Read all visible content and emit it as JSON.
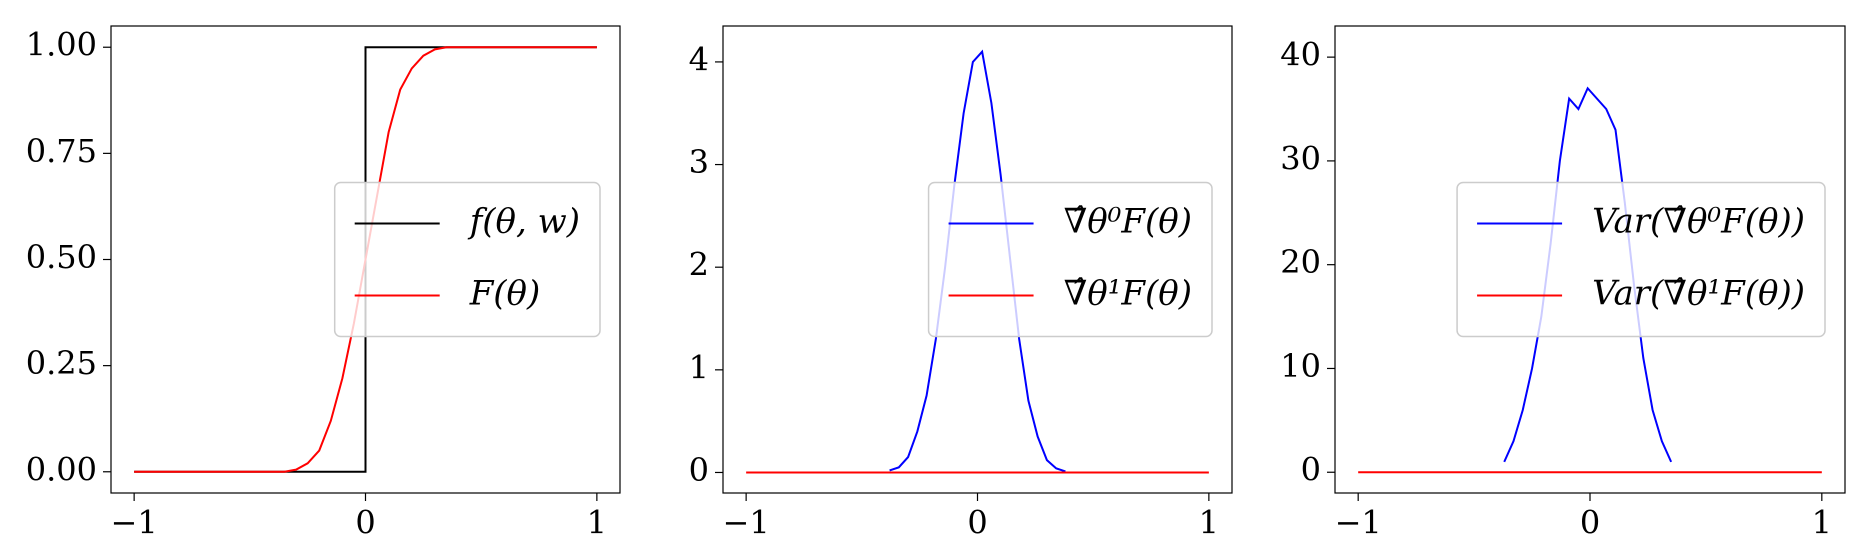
{
  "chart_data": [
    {
      "type": "line",
      "legend": "center right",
      "xlim": [
        -1.1,
        1.1
      ],
      "ylim": [
        -0.05,
        1.05
      ],
      "xticks": [
        {
          "value": -1,
          "label": "−1"
        },
        0,
        1
      ],
      "yticks": [
        {
          "value": 0,
          "label": "0.00"
        },
        {
          "value": 0.25,
          "label": "0.25"
        },
        {
          "value": 0.5,
          "label": "0.50"
        },
        {
          "value": 0.75,
          "label": "0.75"
        },
        {
          "value": 1,
          "label": "1.00"
        }
      ],
      "series": [
        {
          "name": "f(θ, w)",
          "color": "#000000",
          "x": [
            -1,
            0,
            0,
            1
          ],
          "values": [
            0,
            0,
            1,
            1
          ]
        },
        {
          "name": "F(θ)",
          "color": "#ff0000",
          "x": [
            -1,
            -0.35,
            -0.3,
            -0.25,
            -0.2,
            -0.15,
            -0.1,
            -0.05,
            0,
            0.05,
            0.1,
            0.15,
            0.2,
            0.25,
            0.3,
            0.35,
            1
          ],
          "values": [
            0,
            0,
            0.005,
            0.02,
            0.05,
            0.12,
            0.22,
            0.35,
            0.5,
            0.65,
            0.8,
            0.9,
            0.95,
            0.98,
            0.995,
            1,
            1
          ]
        }
      ]
    },
    {
      "type": "line",
      "legend": "center right",
      "xlim": [
        -1.1,
        1.1
      ],
      "ylim": [
        -0.2,
        4.35
      ],
      "xticks": [
        {
          "value": -1,
          "label": "−1"
        },
        0,
        1
      ],
      "yticks": [
        0,
        1,
        2,
        3,
        4
      ],
      "series": [
        {
          "name": "∇̂θ⁰F(θ)",
          "color": "#0000ff",
          "x": [
            -0.38,
            -0.34,
            -0.3,
            -0.26,
            -0.22,
            -0.18,
            -0.14,
            -0.1,
            -0.06,
            -0.02,
            0.02,
            0.06,
            0.1,
            0.14,
            0.18,
            0.22,
            0.26,
            0.3,
            0.34,
            0.38
          ],
          "values": [
            0.02,
            0.05,
            0.15,
            0.4,
            0.75,
            1.3,
            2.0,
            2.8,
            3.5,
            4.0,
            4.1,
            3.6,
            2.9,
            2.1,
            1.3,
            0.7,
            0.35,
            0.12,
            0.04,
            0.01
          ]
        },
        {
          "name": "∇̂θ¹F(θ)",
          "color": "#ff0000",
          "x": [
            -1,
            1
          ],
          "values": [
            0,
            0
          ]
        }
      ]
    },
    {
      "type": "line",
      "legend": "center right",
      "xlim": [
        -1.1,
        1.1
      ],
      "ylim": [
        -2,
        43
      ],
      "xticks": [
        {
          "value": -1,
          "label": "−1"
        },
        0,
        1
      ],
      "yticks": [
        0,
        10,
        20,
        30,
        40
      ],
      "series": [
        {
          "name": "Var(∇̂θ⁰F(θ))",
          "color": "#0000ff",
          "x": [
            -0.37,
            -0.33,
            -0.29,
            -0.25,
            -0.21,
            -0.17,
            -0.13,
            -0.09,
            -0.05,
            -0.01,
            0.03,
            0.07,
            0.11,
            0.15,
            0.19,
            0.23,
            0.27,
            0.31,
            0.35
          ],
          "values": [
            1,
            3,
            6,
            10,
            15,
            22,
            30,
            36,
            35,
            37,
            36,
            35,
            33,
            26,
            18,
            11,
            6,
            3,
            1
          ]
        },
        {
          "name": "Var(∇̂θ¹F(θ))",
          "color": "#ff0000",
          "x": [
            -1,
            1
          ],
          "values": [
            0,
            0
          ]
        }
      ]
    }
  ]
}
